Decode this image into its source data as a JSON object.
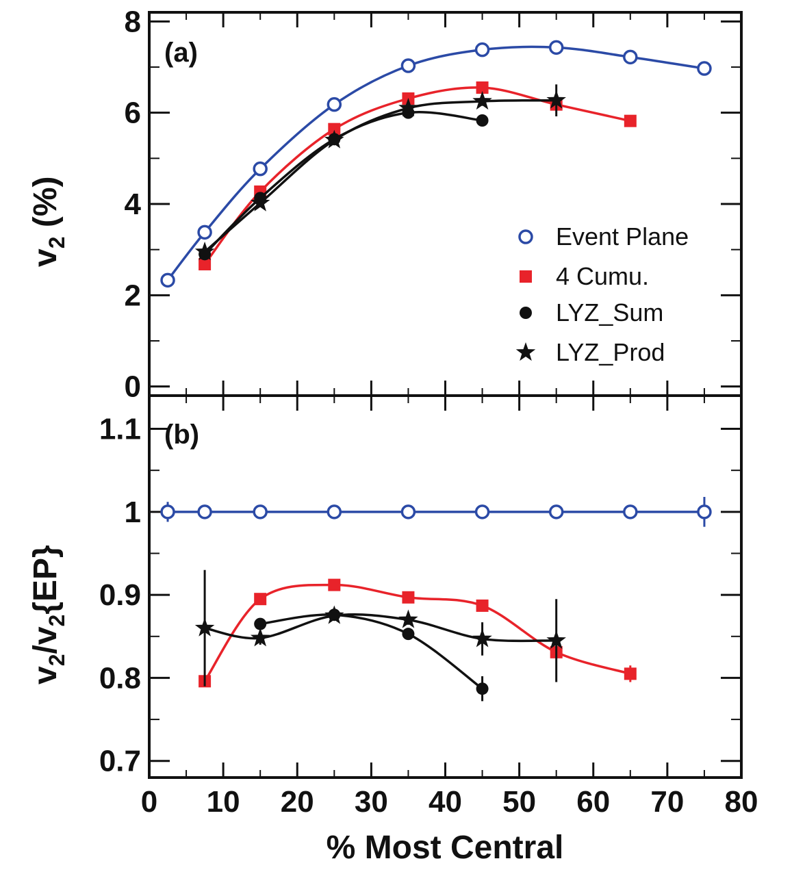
{
  "chart_data": [
    {
      "panel": "(a)",
      "type": "line",
      "ylabel_main": "v",
      "ylabel_sub": "2",
      "ylabel_rest": " (%)",
      "ylim": [
        -0.2,
        8.2
      ],
      "xlim": [
        0,
        80
      ],
      "yticks": [
        "0",
        "2",
        "4",
        "6",
        "8"
      ],
      "ytick_values": [
        0,
        2,
        4,
        6,
        8
      ],
      "series": [
        {
          "name": "Event Plane",
          "marker": "open-circle",
          "color": "#2b4aa6",
          "x": [
            2.5,
            7.5,
            15,
            25,
            35,
            45,
            55,
            65,
            75
          ],
          "y": [
            2.33,
            3.38,
            4.77,
            6.18,
            7.03,
            7.38,
            7.43,
            7.22,
            6.97
          ]
        },
        {
          "name": "4 Cumu.",
          "marker": "square",
          "color": "#e8232a",
          "x": [
            7.5,
            15,
            25,
            35,
            45,
            55,
            65
          ],
          "y": [
            2.68,
            4.27,
            5.64,
            6.31,
            6.55,
            6.18,
            5.82
          ]
        },
        {
          "name": "LYZ_Sum",
          "marker": "filled-circle",
          "color": "#111111",
          "x": [
            7.5,
            15,
            25,
            35,
            45
          ],
          "y": [
            2.9,
            4.13,
            5.42,
            6.0,
            5.83
          ]
        },
        {
          "name": "LYZ_Prod",
          "marker": "star",
          "color": "#111111",
          "x": [
            7.5,
            15,
            25,
            35,
            45,
            55
          ],
          "y": [
            2.95,
            4.02,
            5.4,
            6.1,
            6.25,
            6.27
          ],
          "yerr": [
            0.1,
            0.05,
            0.05,
            0.05,
            0.1,
            0.35
          ]
        }
      ]
    },
    {
      "panel": "(b)",
      "type": "line",
      "ylabel_a": "v",
      "ylabel_a_sub": "2",
      "ylabel_mid": "/v",
      "ylabel_b_sub": "2",
      "ylabel_rest": "{EP}",
      "ylim": [
        0.68,
        1.14
      ],
      "xlim": [
        0,
        80
      ],
      "yticks": [
        "0.7",
        "0.8",
        "0.9",
        "1",
        "1.1"
      ],
      "ytick_values": [
        0.7,
        0.8,
        0.9,
        1.0,
        1.1
      ],
      "series": [
        {
          "name": "Event Plane",
          "marker": "open-circle",
          "color": "#2b4aa6",
          "x": [
            2.5,
            7.5,
            15,
            25,
            35,
            45,
            55,
            65,
            75
          ],
          "y": [
            1,
            1,
            1,
            1,
            1,
            1,
            1,
            1,
            1
          ],
          "yerr": [
            0.012,
            0,
            0,
            0,
            0,
            0,
            0,
            0,
            0.018
          ]
        },
        {
          "name": "4 Cumu.",
          "marker": "square",
          "color": "#e8232a",
          "x": [
            7.5,
            15,
            25,
            35,
            45,
            55,
            65
          ],
          "y": [
            0.796,
            0.895,
            0.912,
            0.897,
            0.887,
            0.831,
            0.805
          ],
          "yerr": [
            0,
            0,
            0,
            0,
            0,
            0,
            0.01
          ]
        },
        {
          "name": "LYZ_Sum",
          "marker": "filled-circle",
          "color": "#111111",
          "x": [
            15,
            25,
            35,
            45
          ],
          "y": [
            0.865,
            0.876,
            0.853,
            0.787
          ],
          "yerr": [
            0,
            0,
            0,
            0.015
          ]
        },
        {
          "name": "LYZ_Prod",
          "marker": "star",
          "color": "#111111",
          "x": [
            7.5,
            15,
            25,
            35,
            45,
            55
          ],
          "y": [
            0.86,
            0.848,
            0.875,
            0.87,
            0.847,
            0.845
          ],
          "yerr": [
            0.07,
            0.008,
            0.006,
            0.006,
            0.02,
            0.05
          ]
        }
      ]
    }
  ],
  "xticks": [
    "0",
    "10",
    "20",
    "30",
    "40",
    "50",
    "60",
    "70",
    "80"
  ],
  "xtick_values": [
    0,
    10,
    20,
    30,
    40,
    50,
    60,
    70,
    80
  ],
  "xlabel": "% Most Central",
  "legend": [
    {
      "label": "Event Plane",
      "marker": "open-circle",
      "color": "#2b4aa6"
    },
    {
      "label": "4 Cumu.",
      "marker": "square",
      "color": "#e8232a"
    },
    {
      "label": "LYZ_Sum",
      "marker": "filled-circle",
      "color": "#111111"
    },
    {
      "label": "LYZ_Prod",
      "marker": "star",
      "color": "#111111"
    }
  ]
}
